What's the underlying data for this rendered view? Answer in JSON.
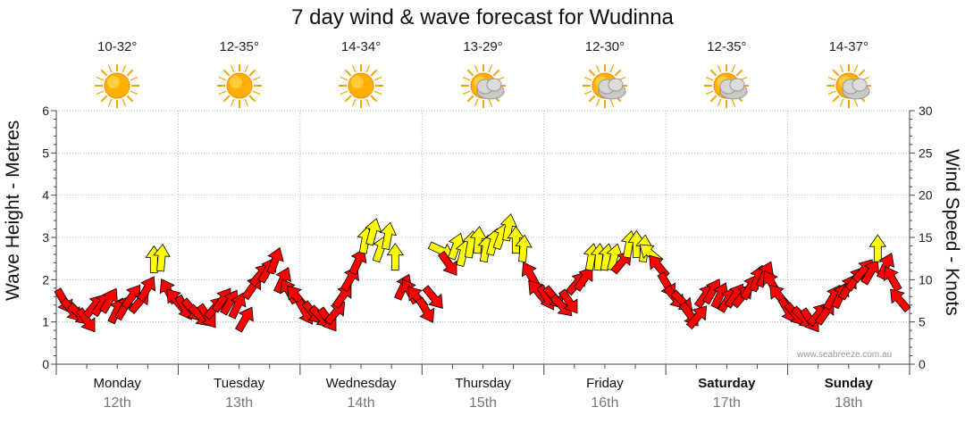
{
  "title": "7 day wind & wave forecast for Wudinna",
  "credit": "www.seabreeze.com.au",
  "days": [
    {
      "name": "Monday",
      "date": "12th",
      "temp": "10-32°",
      "icon": "sun-icon",
      "bold": false
    },
    {
      "name": "Tuesday",
      "date": "13th",
      "temp": "12-35°",
      "icon": "sun-icon",
      "bold": false
    },
    {
      "name": "Wednesday",
      "date": "14th",
      "temp": "14-34°",
      "icon": "sun-icon",
      "bold": false
    },
    {
      "name": "Thursday",
      "date": "15th",
      "temp": "13-29°",
      "icon": "partly-cloudy-icon",
      "bold": false
    },
    {
      "name": "Friday",
      "date": "16th",
      "temp": "12-30°",
      "icon": "partly-cloudy-icon",
      "bold": false
    },
    {
      "name": "Saturday",
      "date": "17th",
      "temp": "12-35°",
      "icon": "partly-cloudy-icon",
      "bold": true
    },
    {
      "name": "Sunday",
      "date": "18th",
      "temp": "14-37°",
      "icon": "partly-cloudy-icon",
      "bold": true
    }
  ],
  "chart_data": {
    "type": "scatter",
    "title": "7 day wind & wave forecast for Wudinna",
    "ylabel_left": "Wave Height - Metres",
    "ylabel_right": "Wind Speed - Knots",
    "ylim_left": [
      0,
      6
    ],
    "ylim_right": [
      0,
      30
    ],
    "yticks_left": [
      0,
      1,
      2,
      3,
      4,
      5,
      6
    ],
    "yticks_right": [
      0,
      5,
      10,
      15,
      20,
      25,
      30
    ],
    "grid": true,
    "colors": {
      "calm": "#ff0000",
      "strong": "#ffff00",
      "outline": "#000000"
    },
    "series": [
      {
        "name": "wind",
        "unit": "knots",
        "values": [
          7.6,
          6.5,
          6.0,
          5.3,
          6.8,
          7.0,
          7.4,
          6.2,
          6.6,
          7.9,
          7.3,
          8.8,
          12.2,
          12.4,
          8.5,
          7.5,
          6.8,
          6.5,
          5.8,
          5.8,
          6.6,
          7.5,
          7.2,
          6.8,
          5.2,
          9.0,
          10.5,
          11.0,
          12.1,
          9.8,
          8.5,
          7.9,
          6.3,
          6.2,
          5.7,
          5.4,
          6.0,
          8.0,
          10.0,
          12.0,
          14.5,
          15.5,
          13.5,
          15.0,
          12.5,
          9.0,
          8.5,
          7.8,
          6.5,
          8.0,
          13.5,
          12.0,
          13.8,
          13.0,
          14.0,
          14.5,
          13.5,
          14.3,
          15.0,
          16.0,
          14.5,
          13.5,
          10.5,
          8.5,
          8.0,
          8.0,
          7.0,
          7.5,
          9.5,
          10.0,
          12.5,
          12.5,
          12.5,
          12.5,
          12.0,
          14.0,
          14.0,
          13.5,
          13.0,
          11.5,
          9.5,
          8.0,
          7.5,
          6.0,
          5.5,
          8.0,
          8.5,
          8.0,
          7.5,
          8.0,
          8.0,
          9.0,
          10.0,
          10.5,
          9.5,
          8.0,
          6.5,
          6.0,
          5.6,
          5.3,
          5.8,
          6.0,
          7.8,
          8.0,
          9.0,
          10.0,
          11.0,
          10.8,
          13.5,
          11.5,
          10.0,
          7.5
        ]
      },
      {
        "name": "wave",
        "unit": "metres",
        "values": []
      }
    ]
  }
}
